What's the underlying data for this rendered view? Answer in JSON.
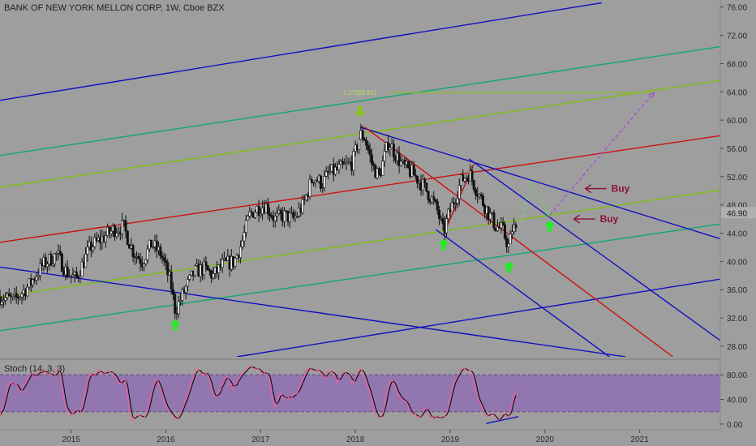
{
  "header": {
    "title": "BANK OF NEW YORK MELLON CORP, 1W, Cboe BZX"
  },
  "chart_data": {
    "type": "candlestick",
    "symbol": "BANK OF NEW YORK MELLON CORP",
    "interval": "1W",
    "exchange": "Cboe BZX",
    "x_ticks": [
      "2015",
      "2016",
      "2017",
      "2018",
      "2019",
      "2020",
      "2021"
    ],
    "x_tick_years": [
      2015,
      2016,
      2017,
      2018,
      2019,
      2020,
      2021
    ],
    "xlim_years": [
      2014.25,
      2021.85
    ],
    "y_ticks": [
      "76.00",
      "72.00",
      "68.00",
      "64.00",
      "60.00",
      "56.00",
      "52.00",
      "48.00",
      "44.00",
      "40.00",
      "36.00",
      "32.00",
      "28.00"
    ],
    "ylim": [
      26.5,
      77.0
    ],
    "last_price": 46.9,
    "last_price_label": "46.90",
    "price_path": [
      [
        2014.25,
        35.0
      ],
      [
        2014.4,
        34.5
      ],
      [
        2014.55,
        36.5
      ],
      [
        2014.7,
        39.5
      ],
      [
        2014.85,
        41.0
      ],
      [
        2014.95,
        38.5
      ],
      [
        2015.05,
        37.5
      ],
      [
        2015.2,
        42.0
      ],
      [
        2015.35,
        43.5
      ],
      [
        2015.45,
        44.5
      ],
      [
        2015.55,
        45.0
      ],
      [
        2015.65,
        41.5
      ],
      [
        2015.75,
        40.0
      ],
      [
        2015.85,
        42.5
      ],
      [
        2015.95,
        41.0
      ],
      [
        2016.05,
        37.0
      ],
      [
        2016.1,
        33.0
      ],
      [
        2016.2,
        36.0
      ],
      [
        2016.3,
        38.5
      ],
      [
        2016.4,
        39.0
      ],
      [
        2016.5,
        38.0
      ],
      [
        2016.6,
        39.5
      ],
      [
        2016.72,
        40.0
      ],
      [
        2016.8,
        42.5
      ],
      [
        2016.88,
        46.5
      ],
      [
        2016.96,
        47.5
      ],
      [
        2017.05,
        48.0
      ],
      [
        2017.15,
        46.0
      ],
      [
        2017.25,
        46.5
      ],
      [
        2017.35,
        46.0
      ],
      [
        2017.45,
        48.0
      ],
      [
        2017.55,
        52.0
      ],
      [
        2017.65,
        51.0
      ],
      [
        2017.72,
        52.5
      ],
      [
        2017.82,
        53.0
      ],
      [
        2017.9,
        53.5
      ],
      [
        2017.97,
        54.0
      ],
      [
        2018.05,
        58.0
      ],
      [
        2018.1,
        57.5
      ],
      [
        2018.18,
        53.5
      ],
      [
        2018.25,
        52.0
      ],
      [
        2018.35,
        57.0
      ],
      [
        2018.43,
        55.0
      ],
      [
        2018.5,
        53.5
      ],
      [
        2018.6,
        52.5
      ],
      [
        2018.7,
        51.0
      ],
      [
        2018.8,
        49.0
      ],
      [
        2018.87,
        47.0
      ],
      [
        2018.93,
        44.0
      ],
      [
        2018.98,
        46.5
      ],
      [
        2019.05,
        49.0
      ],
      [
        2019.12,
        51.5
      ],
      [
        2019.2,
        52.5
      ],
      [
        2019.25,
        51.0
      ],
      [
        2019.32,
        49.0
      ],
      [
        2019.4,
        47.0
      ],
      [
        2019.48,
        45.0
      ],
      [
        2019.55,
        44.5
      ],
      [
        2019.62,
        42.0
      ],
      [
        2019.66,
        45.0
      ],
      [
        2019.7,
        44.0
      ]
    ],
    "channel_lines": [
      {
        "color": "#1010c0",
        "points": [
          [
            2014.25,
            62.8
          ],
          [
            2020.6,
            76.6
          ]
        ]
      },
      {
        "color": "#10a870",
        "points": [
          [
            2014.25,
            55.0
          ],
          [
            2021.85,
            70.4
          ]
        ]
      },
      {
        "color": "#7cc010",
        "points": [
          [
            2014.25,
            50.5
          ],
          [
            2021.85,
            65.6
          ]
        ]
      },
      {
        "color": "#cc1010",
        "points": [
          [
            2014.25,
            42.7
          ],
          [
            2021.85,
            57.8
          ]
        ]
      },
      {
        "color": "#7cc010",
        "points": [
          [
            2014.25,
            35.0
          ],
          [
            2021.85,
            50.1
          ]
        ]
      },
      {
        "color": "#10a870",
        "points": [
          [
            2014.25,
            30.2
          ],
          [
            2021.85,
            45.3
          ]
        ]
      },
      {
        "color": "#1010c0",
        "points": [
          [
            2016.75,
            26.5
          ],
          [
            2021.85,
            37.5
          ]
        ]
      },
      {
        "color": "#1010c0",
        "points": [
          [
            2014.25,
            39.2
          ],
          [
            2020.85,
            26.5
          ]
        ]
      },
      {
        "color": "#1010c0",
        "points": [
          [
            2018.05,
            59.0
          ],
          [
            2021.85,
            43.2
          ]
        ]
      },
      {
        "color": "#1010c0",
        "points": [
          [
            2019.2,
            54.5
          ],
          [
            2021.85,
            28.8
          ]
        ]
      },
      {
        "color": "#1010c0",
        "points": [
          [
            2018.85,
            44.5
          ],
          [
            2020.68,
            26.5
          ]
        ]
      },
      {
        "color": "#cc1010",
        "points": [
          [
            2018.1,
            59.0
          ],
          [
            2021.35,
            26.5
          ]
        ]
      },
      {
        "color": "#cc1010",
        "points": [
          [
            2018.93,
            43.8
          ],
          [
            2019.25,
            53.8
          ]
        ]
      }
    ],
    "dashed_arrows": [
      {
        "color": "#6ad66a",
        "points": [
          [
            2019.73,
            44.8
          ],
          [
            2019.85,
            51.3
          ],
          [
            2020.05,
            46.4
          ]
        ]
      },
      {
        "color": "#b040e0",
        "points": [
          [
            2020.05,
            46.6
          ],
          [
            2021.15,
            63.9
          ]
        ]
      }
    ],
    "fib_line": {
      "label": "1.27(63.91)",
      "value": 63.91,
      "x_start": 2017.85,
      "x_end": 2021.15,
      "color": "#8cc020"
    },
    "arrows_up": [
      [
        2016.1,
        31.0
      ],
      [
        2018.93,
        42.4
      ],
      [
        2019.62,
        39.2
      ],
      [
        2020.05,
        45.0
      ]
    ],
    "arrows_down": [
      [
        2018.05,
        61.2
      ]
    ],
    "buy_labels": [
      {
        "text": "Buy",
        "x": 2020.7,
        "y": 50.3
      },
      {
        "text": "Buy",
        "x": 2020.58,
        "y": 46.0
      }
    ],
    "colors": {
      "background": "#9e9e9e",
      "candle": "#111111",
      "stoch_band": "#8e6fb3",
      "stoch_k": "#ff5a99",
      "stoch_d": "#000000",
      "arrow_up": "#22ee22",
      "arrow_down": "#8cc020",
      "buy": "#8a1040",
      "last_price_bg": "#b0b0b0"
    }
  },
  "stoch": {
    "label": "Stoch (14, 3, 3)",
    "y_ticks": [
      "80.00",
      "40.00",
      "0.00"
    ],
    "ylim": [
      -8,
      100
    ],
    "band": [
      20,
      80
    ],
    "divergence_line": {
      "points": [
        [
          2019.38,
          1.0
        ],
        [
          2019.72,
          12.0
        ]
      ],
      "color": "#1010c0"
    }
  }
}
